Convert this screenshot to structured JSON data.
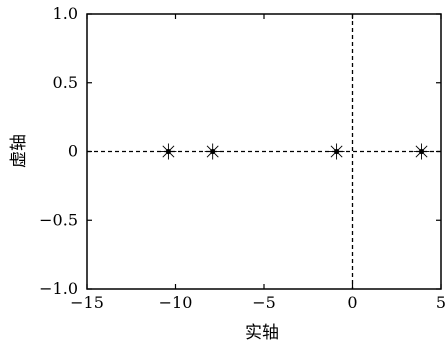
{
  "chart_data": {
    "type": "scatter",
    "title": "",
    "xlabel": "实轴",
    "ylabel": "虚轴",
    "xlim": [
      -15,
      5
    ],
    "ylim": [
      -1.0,
      1.0
    ],
    "xticks": [
      -15,
      -10,
      -5,
      0,
      5
    ],
    "yticks": [
      -1.0,
      -0.5,
      0,
      0.5,
      1.0
    ],
    "xtick_labels": [
      "−15",
      "−10",
      "−5",
      "0",
      "5"
    ],
    "ytick_labels": [
      "−1.0",
      "−0.5",
      "0",
      "0.5",
      "1.0"
    ],
    "grid": false,
    "reference_lines": [
      {
        "axis": "y",
        "value": 0,
        "style": "dashed"
      },
      {
        "axis": "x",
        "value": 0,
        "style": "dashed"
      }
    ],
    "marker": "asterisk-with-dot",
    "points": [
      {
        "x": -10.4,
        "y": 0
      },
      {
        "x": -7.9,
        "y": 0
      },
      {
        "x": -0.9,
        "y": 0
      },
      {
        "x": 3.9,
        "y": 0
      }
    ],
    "colors": {
      "axes": "#000000",
      "marker": "#000000",
      "background": "#ffffff"
    }
  }
}
